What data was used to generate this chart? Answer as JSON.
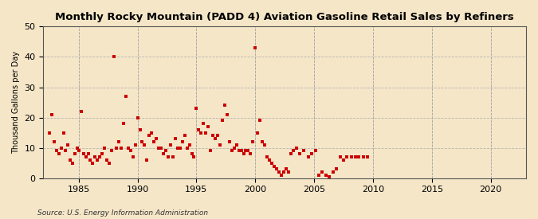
{
  "title": "Monthly Rocky Mountain (PADD 4) Aviation Gasoline Retail Sales by Refiners",
  "ylabel": "Thousand Gallons per Day",
  "source": "Source: U.S. Energy Information Administration",
  "background_color": "#f5e6c8",
  "marker_color": "#cc0000",
  "xlim": [
    1982,
    2023
  ],
  "ylim": [
    0,
    50
  ],
  "yticks": [
    0,
    10,
    20,
    30,
    40,
    50
  ],
  "xticks": [
    1985,
    1990,
    1995,
    2000,
    2005,
    2010,
    2015,
    2020
  ],
  "data_x": [
    1982.5,
    1982.7,
    1982.9,
    1983.1,
    1983.3,
    1983.5,
    1983.7,
    1983.9,
    1984.1,
    1984.3,
    1984.5,
    1984.7,
    1984.9,
    1985.0,
    1985.2,
    1985.4,
    1985.6,
    1985.8,
    1986.0,
    1986.2,
    1986.4,
    1986.6,
    1986.8,
    1987.0,
    1987.2,
    1987.4,
    1987.6,
    1987.8,
    1988.0,
    1988.2,
    1988.4,
    1988.6,
    1988.8,
    1989.0,
    1989.2,
    1989.4,
    1989.6,
    1989.8,
    1990.0,
    1990.2,
    1990.4,
    1990.6,
    1990.8,
    1991.0,
    1991.2,
    1991.4,
    1991.6,
    1991.8,
    1992.0,
    1992.2,
    1992.4,
    1992.6,
    1992.8,
    1993.0,
    1993.2,
    1993.4,
    1993.6,
    1993.8,
    1994.0,
    1994.2,
    1994.4,
    1994.6,
    1994.8,
    1995.0,
    1995.2,
    1995.4,
    1995.6,
    1995.8,
    1996.0,
    1996.2,
    1996.4,
    1996.6,
    1996.8,
    1997.0,
    1997.2,
    1997.4,
    1997.6,
    1997.8,
    1998.0,
    1998.2,
    1998.4,
    1998.6,
    1998.8,
    1999.0,
    1999.2,
    1999.4,
    1999.6,
    1999.8,
    2000.0,
    2000.2,
    2000.4,
    2000.6,
    2000.8,
    2001.0,
    2001.2,
    2001.4,
    2001.6,
    2001.8,
    2002.0,
    2002.2,
    2002.4,
    2002.6,
    2002.8,
    2003.0,
    2003.2,
    2003.5,
    2003.8,
    2004.1,
    2004.5,
    2004.8,
    2005.1,
    2005.4,
    2005.7,
    2006.0,
    2006.3,
    2006.6,
    2006.9,
    2007.2,
    2007.5,
    2007.8,
    2008.2,
    2008.5,
    2008.8,
    2009.2,
    2009.5
  ],
  "data_y": [
    15,
    21,
    12,
    9,
    8,
    10,
    15,
    9,
    11,
    6,
    5,
    8,
    10,
    9,
    22,
    8,
    7,
    8,
    6,
    5,
    7,
    6,
    7,
    8,
    10,
    6,
    5,
    9,
    40,
    10,
    12,
    10,
    18,
    27,
    10,
    9,
    7,
    11,
    20,
    16,
    12,
    11,
    6,
    14,
    15,
    12,
    13,
    10,
    10,
    8,
    9,
    7,
    11,
    7,
    13,
    10,
    10,
    12,
    14,
    10,
    11,
    8,
    7,
    23,
    16,
    15,
    18,
    15,
    17,
    9,
    14,
    13,
    14,
    11,
    19,
    24,
    21,
    12,
    9,
    10,
    11,
    9,
    9,
    8,
    9,
    9,
    8,
    12,
    43,
    15,
    19,
    12,
    11,
    7,
    6,
    5,
    4,
    3,
    2,
    1,
    2,
    3,
    2,
    8,
    9,
    10,
    8,
    9,
    7,
    8,
    9,
    1,
    2,
    1,
    0.5,
    2,
    3,
    7,
    6,
    7,
    7,
    7,
    7,
    7,
    7
  ]
}
